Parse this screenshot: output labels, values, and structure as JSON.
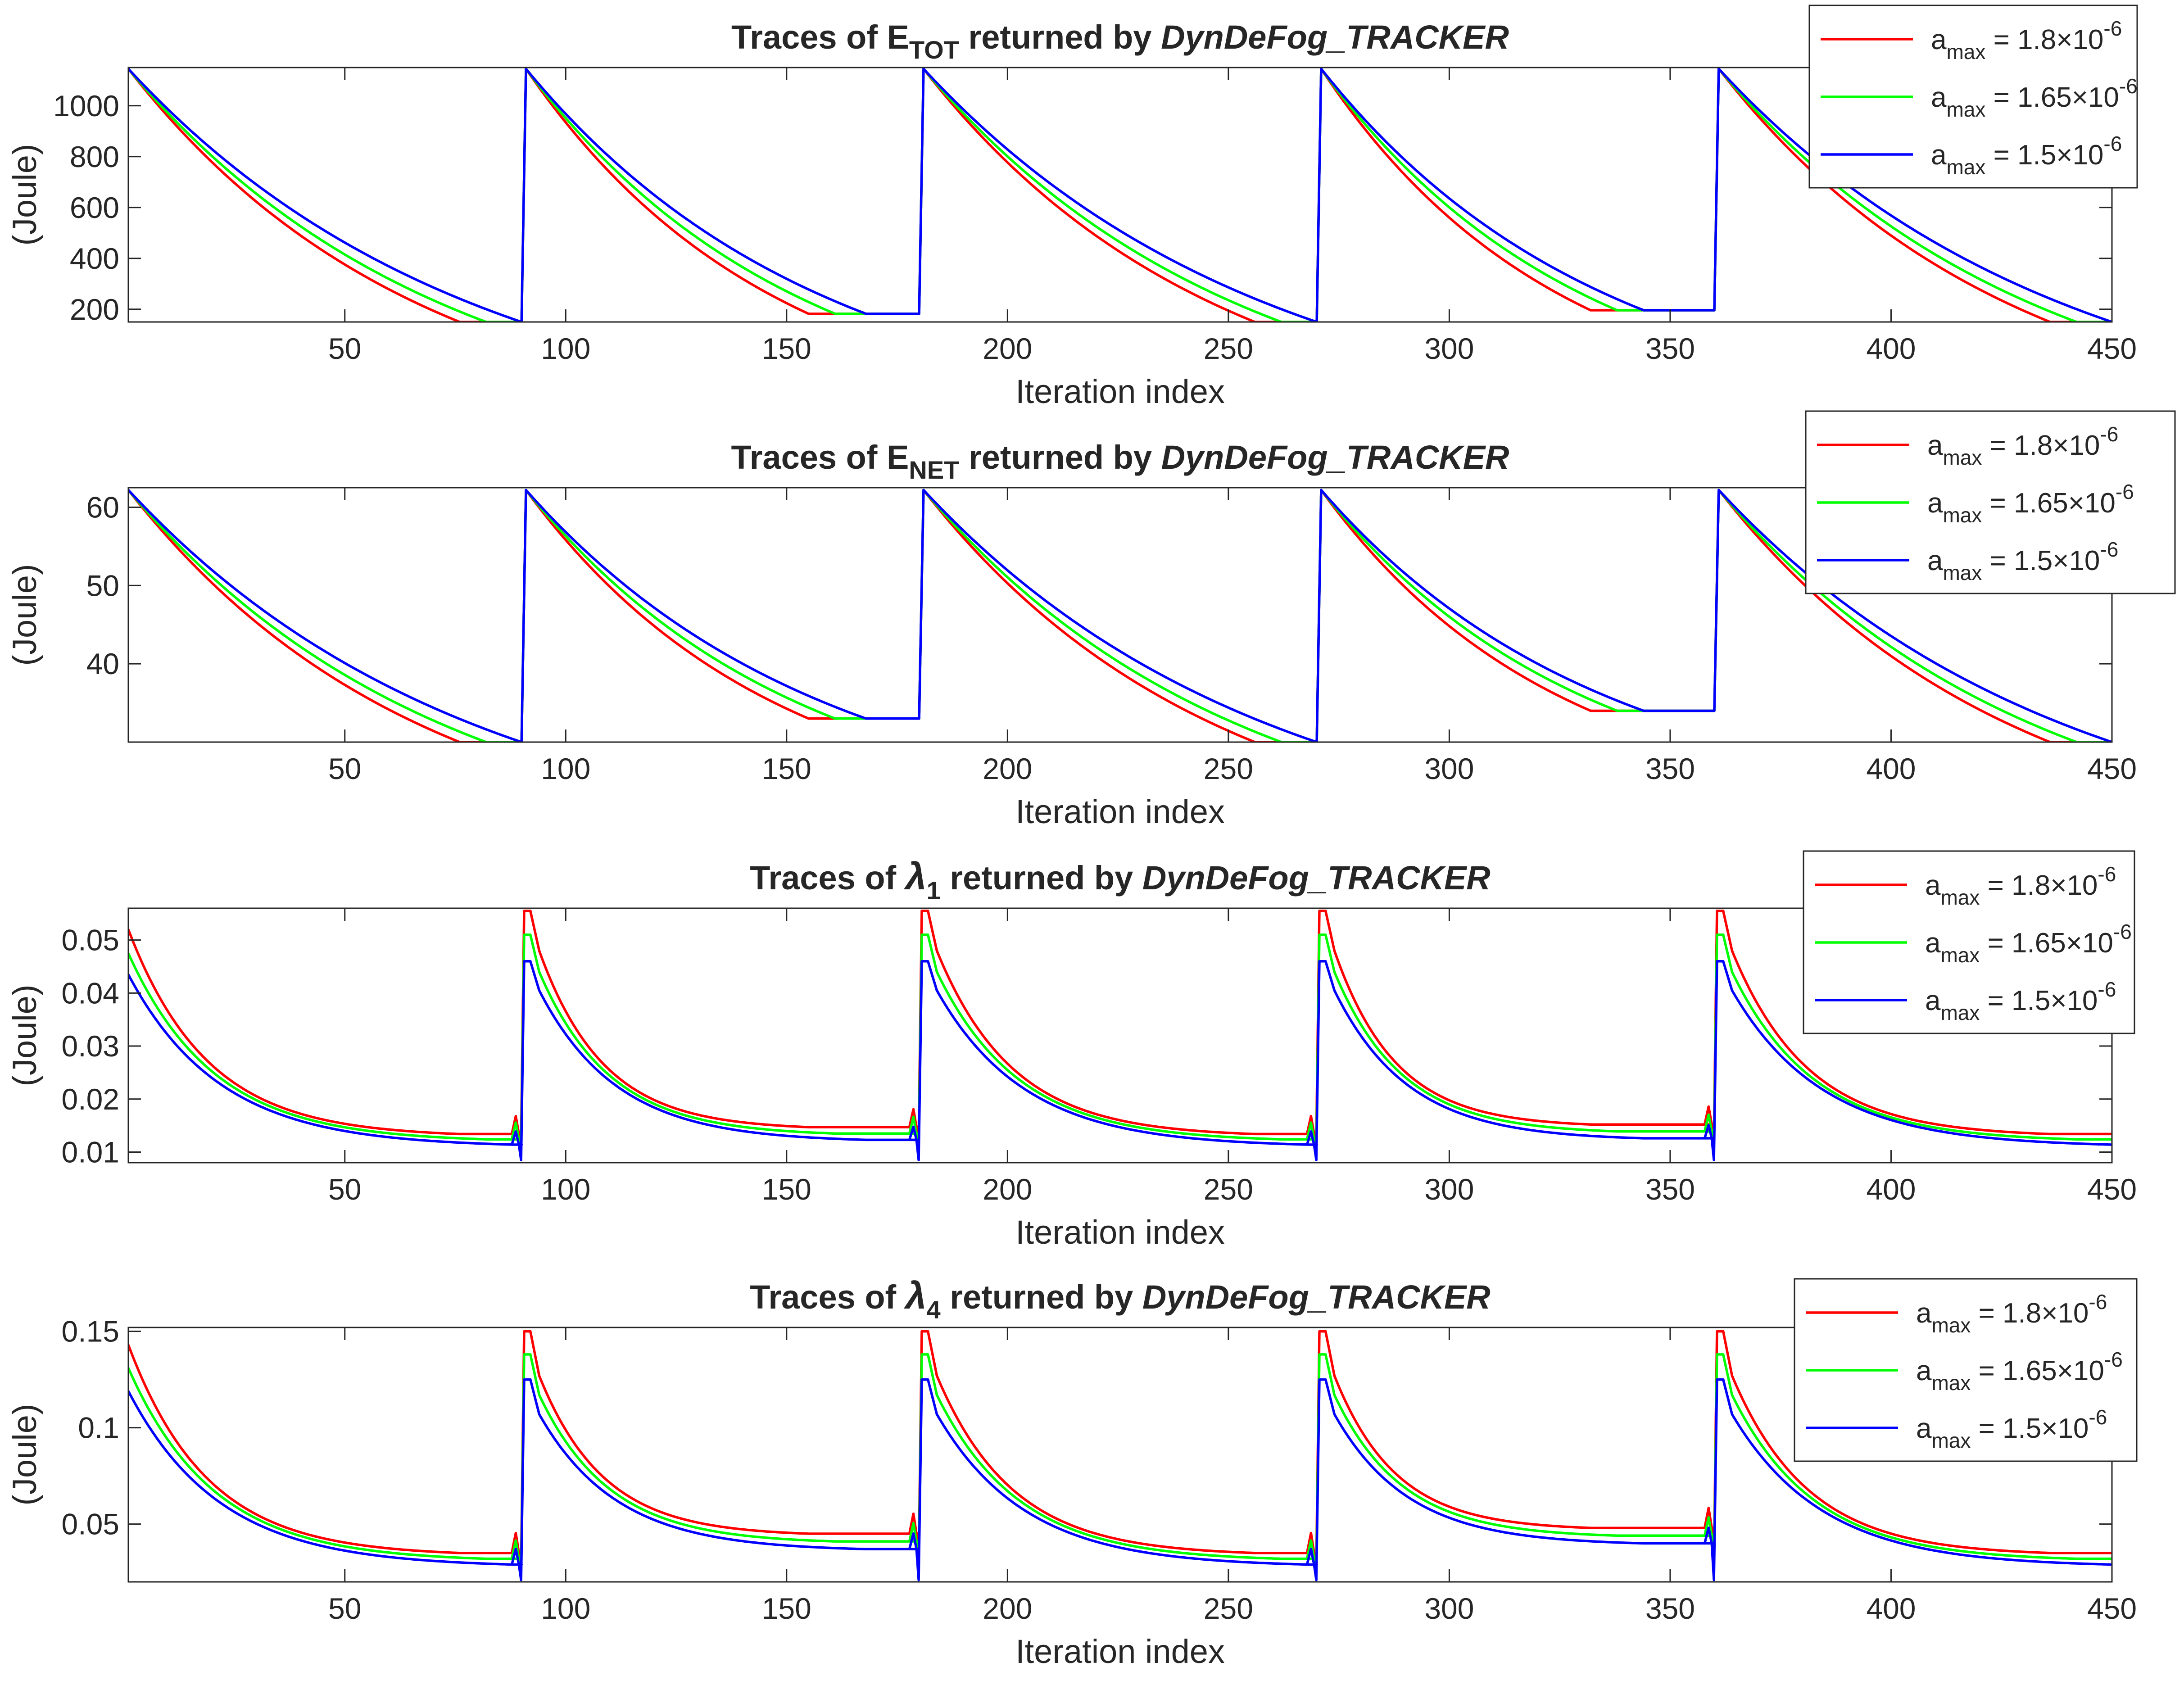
{
  "figure": {
    "xlabel": "Iteration index",
    "ylabel": "(Joule)",
    "xlim": [
      1,
      450
    ],
    "xticks": [
      50,
      100,
      150,
      200,
      250,
      300,
      350,
      400,
      450
    ],
    "title_suffix": "returned by",
    "title_tool": "DynDeFog_TRACKER"
  },
  "chart_data": [
    {
      "type": "line",
      "title": "Traces of E_TOT returned by DynDeFog_TRACKER",
      "title_prefix": "Traces of ",
      "title_symbol": "E",
      "title_subscript": "TOT",
      "xlabel": "Iteration index",
      "ylabel": "(Joule)",
      "xlim": [
        1,
        450
      ],
      "ylim": [
        150,
        1150
      ],
      "yticks": [
        200,
        400,
        600,
        800,
        1000
      ],
      "ytick_labels": [
        "200",
        "400",
        "600",
        "800",
        "1000"
      ],
      "epochs": [
        {
          "start": 1,
          "end": 90,
          "floors": [
            150,
            150,
            150
          ],
          "knees": [
            76,
            82,
            90
          ]
        },
        {
          "start": 91,
          "end": 180,
          "floors": [
            182,
            182,
            182
          ],
          "knees": [
            155,
            161,
            168
          ]
        },
        {
          "start": 181,
          "end": 270,
          "floors": [
            150,
            150,
            150
          ],
          "knees": [
            256,
            262,
            270
          ]
        },
        {
          "start": 271,
          "end": 360,
          "floors": [
            196,
            196,
            196
          ],
          "knees": [
            332,
            338,
            344
          ]
        },
        {
          "start": 361,
          "end": 450,
          "floors": [
            150,
            150,
            150
          ],
          "knees": [
            436,
            442,
            450
          ]
        }
      ],
      "series": [
        {
          "name": "a_max = 1.8×10^-6",
          "label_a": "a",
          "label_sub": "max",
          "label_val": " = 1.8×10",
          "label_exp": "-6",
          "color": "#ff0000",
          "peak": 1145
        },
        {
          "name": "a_max = 1.65×10^-6",
          "label_a": "a",
          "label_sub": "max",
          "label_val": " = 1.65×10",
          "label_exp": "-6",
          "color": "#00ff00",
          "peak": 1145
        },
        {
          "name": "a_max = 1.5×10^-6",
          "label_a": "a",
          "label_sub": "max",
          "label_val": " = 1.5×10",
          "label_exp": "-6",
          "color": "#0000ff",
          "peak": 1145
        }
      ]
    },
    {
      "type": "line",
      "title": "Traces of E_NET returned by DynDeFog_TRACKER",
      "title_prefix": "Traces of ",
      "title_symbol": "E",
      "title_subscript": "NET",
      "xlabel": "Iteration index",
      "ylabel": "(Joule)",
      "xlim": [
        1,
        450
      ],
      "ylim": [
        30,
        62.5
      ],
      "yticks": [
        40,
        50,
        60
      ],
      "ytick_labels": [
        "40",
        "50",
        "60"
      ],
      "epochs": [
        {
          "start": 1,
          "end": 90,
          "floors": [
            30,
            30,
            30
          ],
          "knees": [
            76,
            82,
            90
          ]
        },
        {
          "start": 91,
          "end": 180,
          "floors": [
            33,
            33,
            33
          ],
          "knees": [
            155,
            161,
            168
          ]
        },
        {
          "start": 181,
          "end": 270,
          "floors": [
            30,
            30,
            30
          ],
          "knees": [
            256,
            262,
            270
          ]
        },
        {
          "start": 271,
          "end": 360,
          "floors": [
            34,
            34,
            34
          ],
          "knees": [
            332,
            338,
            344
          ]
        },
        {
          "start": 361,
          "end": 450,
          "floors": [
            30,
            30,
            30
          ],
          "knees": [
            436,
            442,
            450
          ]
        }
      ],
      "series": [
        {
          "name": "a_max = 1.8×10^-6",
          "label_a": "a",
          "label_sub": "max",
          "label_val": " = 1.8×10",
          "label_exp": "-6",
          "color": "#ff0000",
          "peak": 62.2
        },
        {
          "name": "a_max = 1.65×10^-6",
          "label_a": "a",
          "label_sub": "max",
          "label_val": " = 1.65×10",
          "label_exp": "-6",
          "color": "#00ff00",
          "peak": 62.2
        },
        {
          "name": "a_max = 1.5×10^-6",
          "label_a": "a",
          "label_sub": "max",
          "label_val": " = 1.5×10",
          "label_exp": "-6",
          "color": "#0000ff",
          "peak": 62.2
        }
      ]
    },
    {
      "type": "line",
      "title": "Traces of λ1 returned by DynDeFog_TRACKER",
      "title_prefix": "Traces of ",
      "title_symbol": "λ",
      "title_subscript": "1",
      "xlabel": "Iteration index",
      "ylabel": "(Joule)",
      "xlim": [
        1,
        450
      ],
      "ylim": [
        0.008,
        0.056
      ],
      "yticks": [
        0.01,
        0.02,
        0.03,
        0.04,
        0.05
      ],
      "ytick_labels": [
        "0.01",
        "0.02",
        "0.03",
        "0.04",
        "0.05"
      ],
      "epochs": [
        {
          "start": 1,
          "end": 90,
          "floors": [
            0.0134,
            0.0124,
            0.0114
          ],
          "knees": [
            76,
            82,
            88
          ]
        },
        {
          "start": 91,
          "end": 180,
          "floors": [
            0.0147,
            0.0135,
            0.0123
          ],
          "knees": [
            155,
            161,
            168
          ]
        },
        {
          "start": 181,
          "end": 270,
          "floors": [
            0.0134,
            0.0124,
            0.0114
          ],
          "knees": [
            256,
            262,
            268
          ]
        },
        {
          "start": 271,
          "end": 360,
          "floors": [
            0.0152,
            0.0139,
            0.0126
          ],
          "knees": [
            332,
            338,
            344
          ]
        },
        {
          "start": 361,
          "end": 450,
          "floors": [
            0.0134,
            0.0124,
            0.0114
          ],
          "knees": [
            436,
            442,
            450
          ]
        }
      ],
      "series": [
        {
          "name": "a_max = 1.8×10^-6",
          "label_a": "a",
          "label_sub": "max",
          "label_val": " = 1.8×10",
          "label_exp": "-6",
          "color": "#ff0000",
          "start": 0.052,
          "peak": 0.0555,
          "shoulder": 0.048,
          "dip": 0.0125
        },
        {
          "name": "a_max = 1.65×10^-6",
          "label_a": "a",
          "label_sub": "max",
          "label_val": " = 1.65×10",
          "label_exp": "-6",
          "color": "#00ff00",
          "start": 0.0475,
          "peak": 0.051,
          "shoulder": 0.044,
          "dip": 0.0105
        },
        {
          "name": "a_max = 1.5×10^-6",
          "label_a": "a",
          "label_sub": "max",
          "label_val": " = 1.5×10",
          "label_exp": "-6",
          "color": "#0000ff",
          "start": 0.0435,
          "peak": 0.046,
          "shoulder": 0.0405,
          "dip": 0.0085
        }
      ]
    },
    {
      "type": "line",
      "title": "Traces of λ4 returned by DynDeFog_TRACKER",
      "title_prefix": "Traces of ",
      "title_symbol": "λ",
      "title_subscript": "4",
      "xlabel": "Iteration index",
      "ylabel": "(Joule)",
      "xlim": [
        1,
        450
      ],
      "ylim": [
        0.02,
        0.152
      ],
      "yticks": [
        0.05,
        0.1,
        0.15
      ],
      "ytick_labels": [
        "0.05",
        "0.1",
        "0.15"
      ],
      "epochs": [
        {
          "start": 1,
          "end": 90,
          "floors": [
            0.035,
            0.032,
            0.029
          ],
          "knees": [
            76,
            82,
            88
          ]
        },
        {
          "start": 91,
          "end": 180,
          "floors": [
            0.045,
            0.041,
            0.037
          ],
          "knees": [
            155,
            161,
            168
          ]
        },
        {
          "start": 181,
          "end": 270,
          "floors": [
            0.035,
            0.032,
            0.029
          ],
          "knees": [
            256,
            262,
            268
          ]
        },
        {
          "start": 271,
          "end": 360,
          "floors": [
            0.048,
            0.044,
            0.04
          ],
          "knees": [
            332,
            338,
            344
          ]
        },
        {
          "start": 361,
          "end": 450,
          "floors": [
            0.035,
            0.032,
            0.029
          ],
          "knees": [
            436,
            442,
            450
          ]
        }
      ],
      "series": [
        {
          "name": "a_max = 1.8×10^-6",
          "label_a": "a",
          "label_sub": "max",
          "label_val": " = 1.8×10",
          "label_exp": "-6",
          "color": "#ff0000",
          "start": 0.143,
          "peak": 0.15,
          "shoulder": 0.127,
          "dip": 0.029
        },
        {
          "name": "a_max = 1.65×10^-6",
          "label_a": "a",
          "label_sub": "max",
          "label_val": " = 1.65×10",
          "label_exp": "-6",
          "color": "#00ff00",
          "start": 0.131,
          "peak": 0.138,
          "shoulder": 0.117,
          "dip": 0.025
        },
        {
          "name": "a_max = 1.5×10^-6",
          "label_a": "a",
          "label_sub": "max",
          "label_val": " = 1.5×10",
          "label_exp": "-6",
          "color": "#0000ff",
          "start": 0.119,
          "peak": 0.125,
          "shoulder": 0.107,
          "dip": 0.021
        }
      ]
    }
  ]
}
